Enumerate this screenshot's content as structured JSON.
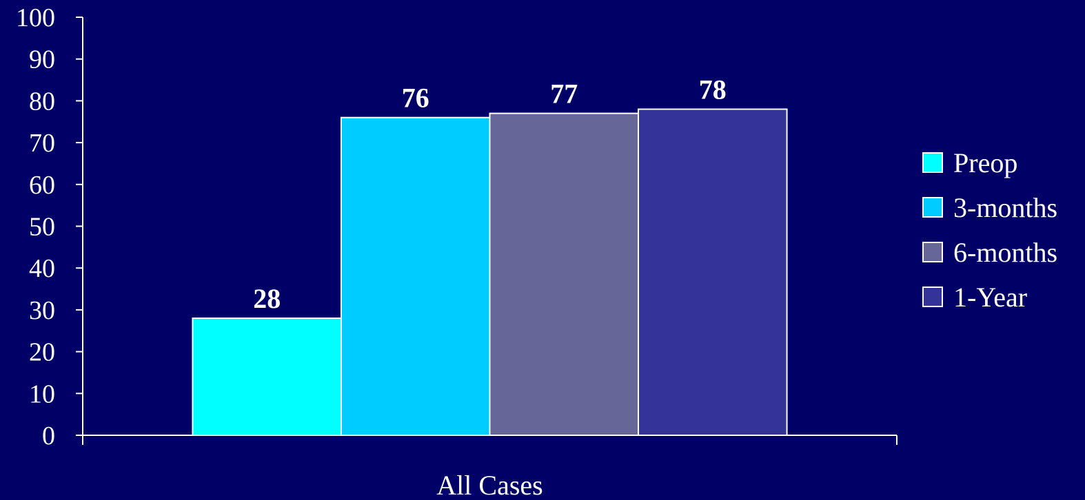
{
  "chart_data": {
    "type": "bar",
    "categories": [
      "All Cases"
    ],
    "series": [
      {
        "name": "Preop",
        "values": [
          28
        ],
        "color": "#00ffff"
      },
      {
        "name": "3-months",
        "values": [
          76
        ],
        "color": "#00ccff"
      },
      {
        "name": "6-months",
        "values": [
          77
        ],
        "color": "#666699"
      },
      {
        "name": "1-Year",
        "values": [
          78
        ],
        "color": "#333399"
      }
    ],
    "title": "",
    "xlabel": "",
    "ylabel": "",
    "ylim": [
      0,
      100
    ],
    "yticks": [
      0,
      10,
      20,
      30,
      40,
      50,
      60,
      70,
      80,
      90,
      100
    ],
    "grid": false,
    "legend_position": "right",
    "data_labels": true,
    "colors": {
      "background": "#000066",
      "axis": "#ffffff",
      "text": "#ffffff",
      "bar_border": "#ffffff"
    }
  }
}
